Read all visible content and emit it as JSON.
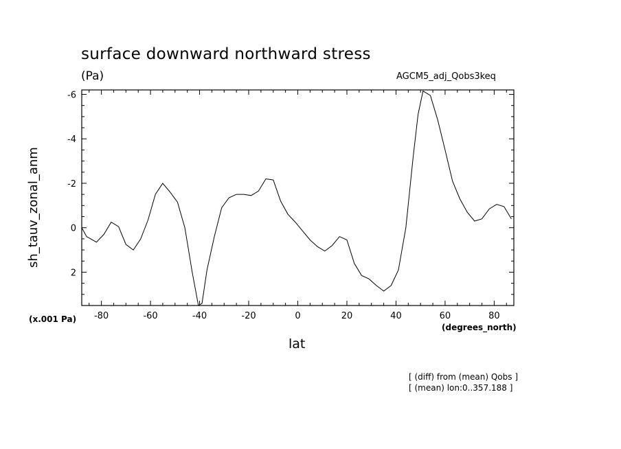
{
  "chart_data": {
    "type": "line",
    "title": "surface downward northward stress",
    "units": "(Pa)",
    "subtitle": "AGCM5_adj_Qobs3keq",
    "ylabel": "sh_tauv_zonal_anm",
    "xlabel": "lat",
    "x_units": "(degrees_north)",
    "y_scale_note": "(x.001 Pa)",
    "notes": [
      "[ (diff) from (mean) Qobs ]",
      "[ (mean) lon:0..357.188 ]"
    ],
    "xlim": [
      -88,
      88
    ],
    "ylim": [
      3.5,
      -6.2
    ],
    "y_inverted": true,
    "x_ticks": [
      -80,
      -60,
      -40,
      -20,
      0,
      20,
      40,
      60,
      80
    ],
    "x_tick_labels": [
      "-80",
      "-60",
      "-40",
      "-20",
      "0",
      "20",
      "40",
      "60",
      "80"
    ],
    "y_ticks": [
      -6,
      -4,
      -2,
      0,
      2
    ],
    "y_tick_labels": [
      "-6",
      "-4",
      "-2",
      "0",
      "2"
    ],
    "series": [
      {
        "x": [
          -88,
          -86,
          -82,
          -79,
          -76,
          -73,
          -70,
          -67,
          -64,
          -61,
          -58,
          -55,
          -52,
          -49,
          -46,
          -43,
          -40.5,
          -39,
          -37,
          -34,
          -31,
          -28,
          -25,
          -22,
          -19,
          -16,
          -13,
          -10,
          -7,
          -4,
          -1,
          2,
          5,
          8,
          11,
          14,
          17,
          20,
          23,
          26,
          29,
          32,
          35,
          38,
          41,
          44,
          47,
          49,
          51,
          54,
          57,
          60,
          63,
          66,
          69,
          72,
          75,
          78,
          81,
          84,
          87
        ],
        "y": [
          0,
          0.4,
          0.65,
          0.3,
          -0.25,
          -0.05,
          0.75,
          1.0,
          0.5,
          -0.35,
          -1.5,
          -2.0,
          -1.6,
          -1.15,
          0,
          2.0,
          3.75,
          3.4,
          1.9,
          0.4,
          -0.9,
          -1.35,
          -1.5,
          -1.5,
          -1.45,
          -1.65,
          -2.2,
          -2.15,
          -1.2,
          -0.6,
          -0.25,
          0.15,
          0.55,
          0.85,
          1.05,
          0.8,
          0.4,
          0.55,
          1.6,
          2.15,
          2.3,
          2.6,
          2.85,
          2.6,
          1.9,
          0,
          -3.2,
          -5.1,
          -6.15,
          -5.95,
          -4.85,
          -3.5,
          -2.1,
          -1.3,
          -0.7,
          -0.3,
          -0.4,
          -0.85,
          -1.05,
          -0.95,
          -0.4
        ]
      }
    ]
  }
}
